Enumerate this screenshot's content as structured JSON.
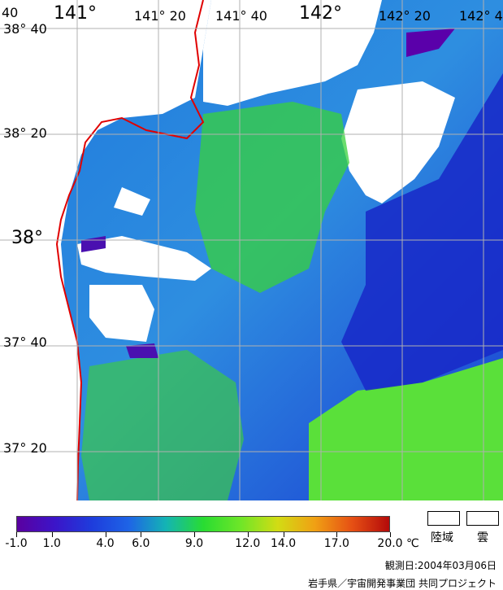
{
  "map": {
    "lon_labels": [
      {
        "text": "141°",
        "big": true
      },
      {
        "text": "141° 20",
        "big": false
      },
      {
        "text": "141° 40",
        "big": false
      },
      {
        "text": "142°",
        "big": true
      },
      {
        "text": "142° 20",
        "big": false
      },
      {
        "text": "142° 4",
        "big": false
      }
    ],
    "lat_labels": [
      {
        "text": "38° 40",
        "big": false
      },
      {
        "text": "38° 20",
        "big": false
      },
      {
        "text": "38°",
        "big": true
      },
      {
        "text": "37° 40",
        "big": false
      },
      {
        "text": "37° 20",
        "big": false
      }
    ],
    "corner_label": "40"
  },
  "colorbar": {
    "ticks": [
      "-1.0",
      "1.0",
      "4.0",
      "6.0",
      "9.0",
      "12.0",
      "14.0",
      "17.0",
      "20.0"
    ],
    "tick_values": [
      -1,
      1,
      4,
      6,
      9,
      12,
      14,
      17,
      20
    ],
    "unit": "℃",
    "colors": [
      "#5a00a0",
      "#3c14c8",
      "#1e3cdc",
      "#1e64e6",
      "#14b4b4",
      "#28dc32",
      "#6ee628",
      "#d2dc14",
      "#f0a014",
      "#e65014",
      "#b40a0a"
    ]
  },
  "legend": {
    "land_label": "陸域",
    "cloud_label": "雲"
  },
  "footer": {
    "observation_date": "観測日:2004年03月06日",
    "credit": "岩手県／宇宙開発事業団 共同プロジェクト"
  }
}
